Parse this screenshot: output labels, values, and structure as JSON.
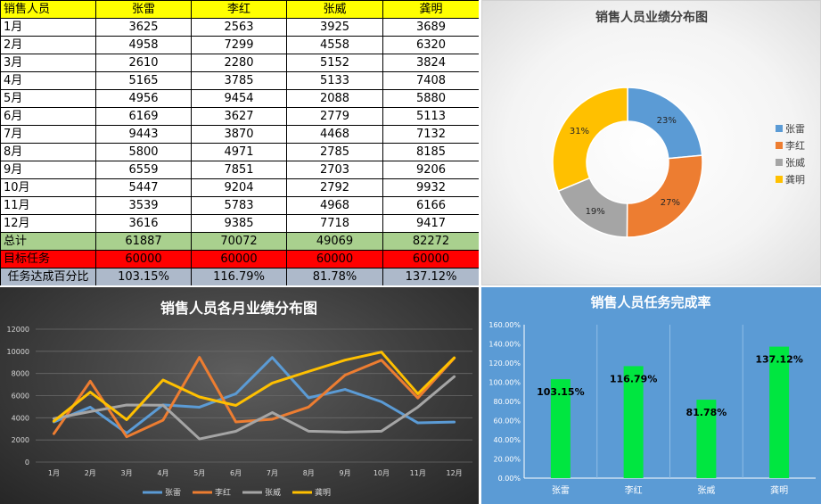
{
  "table": {
    "corner": "销售人员",
    "people": [
      "张雷",
      "李红",
      "张威",
      "龚明"
    ],
    "rows": [
      {
        "label": "1月",
        "values": [
          3625,
          2563,
          3925,
          3689
        ]
      },
      {
        "label": "2月",
        "values": [
          4958,
          7299,
          4558,
          6320
        ]
      },
      {
        "label": "3月",
        "values": [
          2610,
          2280,
          5152,
          3824
        ]
      },
      {
        "label": "4月",
        "values": [
          5165,
          3785,
          5133,
          7408
        ]
      },
      {
        "label": "5月",
        "values": [
          4956,
          9454,
          2088,
          5880
        ]
      },
      {
        "label": "6月",
        "values": [
          6169,
          3627,
          2779,
          5113
        ]
      },
      {
        "label": "7月",
        "values": [
          9443,
          3870,
          4468,
          7132
        ]
      },
      {
        "label": "8月",
        "values": [
          5800,
          4971,
          2785,
          8185
        ]
      },
      {
        "label": "9月",
        "values": [
          6559,
          7851,
          2703,
          9206
        ]
      },
      {
        "label": "10月",
        "values": [
          5447,
          9204,
          2792,
          9932
        ]
      },
      {
        "label": "11月",
        "values": [
          3539,
          5783,
          4968,
          6166
        ]
      },
      {
        "label": "12月",
        "values": [
          3616,
          9385,
          7718,
          9417
        ]
      }
    ],
    "total": {
      "label": "总计",
      "values": [
        "61887",
        "70072",
        "49069",
        "82272"
      ]
    },
    "target": {
      "label": "目标任务",
      "values": [
        "60000",
        "60000",
        "60000",
        "60000"
      ]
    },
    "pct": {
      "label": "任务达成百分比",
      "values": [
        "103.15%",
        "116.79%",
        "81.78%",
        "137.12%"
      ]
    }
  },
  "colors": {
    "张雷": "#5b9bd5",
    "李红": "#ed7d31",
    "张威": "#a5a5a5",
    "龚明": "#ffc000",
    "bar": "#00e640"
  },
  "chart_data": [
    {
      "type": "pie",
      "title": "销售人员业绩分布图",
      "categories": [
        "张雷",
        "李红",
        "张威",
        "龚明"
      ],
      "values": [
        61887,
        70072,
        49069,
        82272
      ],
      "labels": [
        "23%",
        "27%",
        "19%",
        "31%"
      ],
      "legend": "right"
    },
    {
      "type": "line",
      "title": "销售人员各月业绩分布图",
      "categories": [
        "1月",
        "2月",
        "3月",
        "4月",
        "5月",
        "6月",
        "7月",
        "8月",
        "9月",
        "10月",
        "11月",
        "12月"
      ],
      "ylim": [
        0,
        12000
      ],
      "yticks": [
        "0",
        "2000",
        "4000",
        "6000",
        "8000",
        "10000",
        "12000"
      ],
      "grid": true,
      "legend": "bottom",
      "series": [
        {
          "name": "张雷",
          "values": [
            3625,
            4958,
            2610,
            5165,
            4956,
            6169,
            9443,
            5800,
            6559,
            5447,
            3539,
            3616
          ]
        },
        {
          "name": "李红",
          "values": [
            2563,
            7299,
            2280,
            3785,
            9454,
            3627,
            3870,
            4971,
            7851,
            9204,
            5783,
            9385
          ]
        },
        {
          "name": "张威",
          "values": [
            3925,
            4558,
            5152,
            5133,
            2088,
            2779,
            4468,
            2785,
            2703,
            2792,
            4968,
            7718
          ]
        },
        {
          "name": "龚明",
          "values": [
            3689,
            6320,
            3824,
            7408,
            5880,
            5113,
            7132,
            8185,
            9206,
            9932,
            6166,
            9417
          ]
        }
      ]
    },
    {
      "type": "bar",
      "title": "销售人员任务完成率",
      "categories": [
        "张雷",
        "李红",
        "张威",
        "龚明"
      ],
      "values": [
        103.15,
        116.79,
        81.78,
        137.12
      ],
      "labels": [
        "103.15%",
        "116.79%",
        "81.78%",
        "137.12%"
      ],
      "ylim": [
        0,
        160
      ],
      "yticks": [
        "0.00%",
        "20.00%",
        "40.00%",
        "60.00%",
        "80.00%",
        "100.00%",
        "120.00%",
        "140.00%",
        "160.00%"
      ]
    }
  ]
}
